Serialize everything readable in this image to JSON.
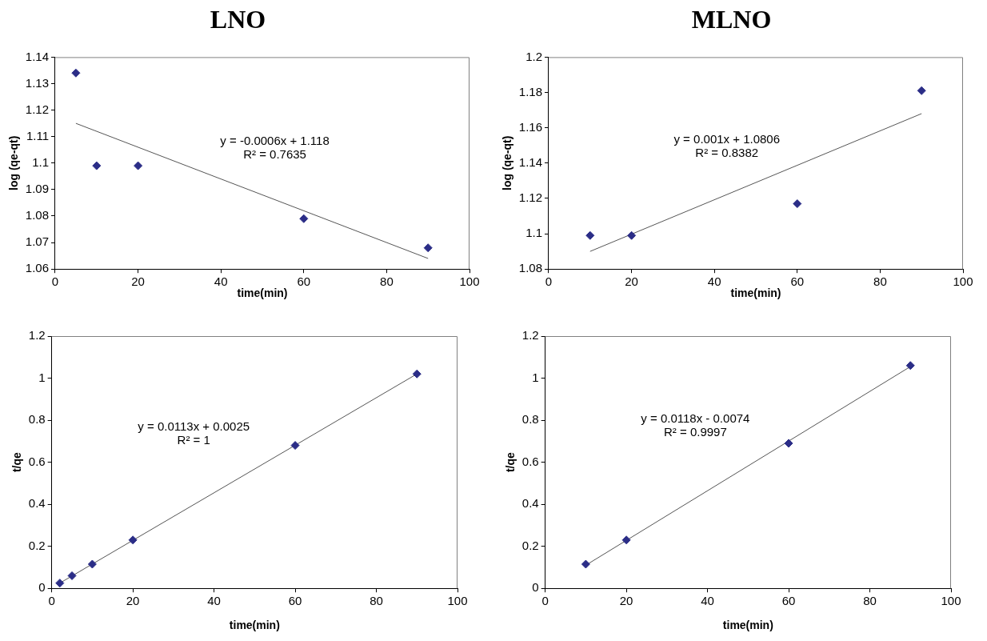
{
  "chart_data": [
    {
      "type": "scatter",
      "title": "LNO",
      "xlabel": "time(min)",
      "ylabel": "log (qe-qt)",
      "grid": false,
      "legend": false,
      "series": [
        {
          "color": "#2b2d87",
          "marker": "diamond",
          "x": [
            5,
            10,
            20,
            60,
            90
          ],
          "values": [
            1.134,
            1.099,
            1.099,
            1.079,
            1.068
          ]
        },
        {
          "type": "line",
          "marker": "none",
          "color": "#555555",
          "x": [
            5,
            90
          ],
          "values": [
            1.115,
            1.064
          ]
        }
      ],
      "xlim": [
        0,
        100
      ],
      "xticks": [
        0,
        20,
        40,
        60,
        80,
        100
      ],
      "ylim": [
        1.06,
        1.14
      ],
      "yticks": [
        1.06,
        1.07,
        1.08,
        1.09,
        1.1,
        1.11,
        1.12,
        1.13,
        1.14
      ],
      "annotations": [
        "y = -0.0006x + 1.118",
        "R² = 0.7635"
      ]
    },
    {
      "type": "scatter",
      "title": "MLNO",
      "xlabel": "time(min)",
      "ylabel": "log (qe-qt)",
      "grid": false,
      "legend": false,
      "series": [
        {
          "color": "#2b2d87",
          "marker": "diamond",
          "x": [
            10,
            20,
            60,
            90
          ],
          "values": [
            1.099,
            1.099,
            1.117,
            1.181
          ]
        },
        {
          "type": "line",
          "marker": "none",
          "color": "#555555",
          "x": [
            10,
            90
          ],
          "values": [
            1.09,
            1.168
          ]
        }
      ],
      "xlim": [
        0,
        100
      ],
      "xticks": [
        0,
        20,
        40,
        60,
        80,
        100
      ],
      "ylim": [
        1.08,
        1.2
      ],
      "yticks": [
        1.08,
        1.1,
        1.12,
        1.14,
        1.16,
        1.18,
        1.2
      ],
      "annotations": [
        "y = 0.001x + 1.0806",
        "R² = 0.8382"
      ]
    },
    {
      "type": "scatter",
      "xlabel": "time(min)",
      "ylabel": "t/qe",
      "grid": false,
      "legend": false,
      "series": [
        {
          "color": "#2b2d87",
          "marker": "diamond",
          "x": [
            2,
            5,
            10,
            20,
            60,
            90
          ],
          "values": [
            0.025,
            0.06,
            0.115,
            0.23,
            0.68,
            1.02
          ]
        },
        {
          "type": "line",
          "marker": "none",
          "color": "#555555",
          "x": [
            2,
            90
          ],
          "values": [
            0.025,
            1.02
          ]
        }
      ],
      "xlim": [
        0,
        100
      ],
      "xticks": [
        0,
        20,
        40,
        60,
        80,
        100
      ],
      "ylim": [
        0,
        1.2
      ],
      "yticks": [
        0,
        0.2,
        0.4,
        0.6,
        0.8,
        1,
        1.2
      ],
      "annotations": [
        "y = 0.0113x + 0.0025",
        "R² = 1"
      ]
    },
    {
      "type": "scatter",
      "xlabel": "time(min)",
      "ylabel": "t/qe",
      "grid": false,
      "legend": false,
      "series": [
        {
          "color": "#2b2d87",
          "marker": "diamond",
          "x": [
            10,
            20,
            60,
            90
          ],
          "values": [
            0.115,
            0.23,
            0.69,
            1.06
          ]
        },
        {
          "type": "line",
          "marker": "none",
          "color": "#555555",
          "x": [
            10,
            90
          ],
          "values": [
            0.11,
            1.055
          ]
        }
      ],
      "xlim": [
        0,
        100
      ],
      "xticks": [
        0,
        20,
        40,
        60,
        80,
        100
      ],
      "ylim": [
        0,
        1.2
      ],
      "yticks": [
        0,
        0.2,
        0.4,
        0.6,
        0.8,
        1,
        1.2
      ],
      "annotations": [
        "y = 0.0118x - 0.0074",
        "R² = 0.9997"
      ]
    }
  ]
}
